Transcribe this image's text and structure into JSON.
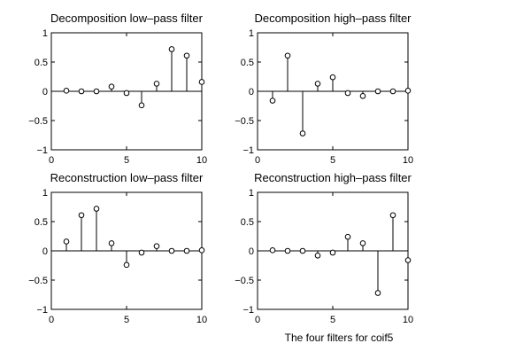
{
  "caption": "The four filters for coif5",
  "chart_data": [
    {
      "type": "stem",
      "title": "Decomposition low–pass filter",
      "xlabel": "",
      "ylabel": "",
      "xlim": [
        0,
        10
      ],
      "ylim": [
        -1,
        1
      ],
      "xticks": [
        0,
        5,
        10
      ],
      "yticks": [
        -1,
        -0.5,
        0,
        0.5,
        1
      ],
      "xtick_labels": [
        "0",
        "5",
        "10"
      ],
      "ytick_labels": [
        "−1",
        "−0.5",
        "0",
        "0.5",
        "1"
      ],
      "grid": false,
      "x": [
        1,
        2,
        3,
        4,
        5,
        6,
        7,
        8,
        9,
        10
      ],
      "values": [
        0.01,
        0.0,
        0.0,
        0.08,
        -0.03,
        -0.24,
        0.13,
        0.72,
        0.61,
        0.16
      ]
    },
    {
      "type": "stem",
      "title": "Decomposition high–pass filter",
      "xlabel": "",
      "ylabel": "",
      "xlim": [
        0,
        10
      ],
      "ylim": [
        -1,
        1
      ],
      "xticks": [
        0,
        5,
        10
      ],
      "yticks": [
        -1,
        -0.5,
        0,
        0.5,
        1
      ],
      "xtick_labels": [
        "0",
        "5",
        "10"
      ],
      "ytick_labels": [
        "−1",
        "−0.5",
        "0",
        "0.5",
        "1"
      ],
      "grid": false,
      "x": [
        1,
        2,
        3,
        4,
        5,
        6,
        7,
        8,
        9,
        10
      ],
      "values": [
        -0.16,
        0.61,
        -0.72,
        0.13,
        0.24,
        -0.03,
        -0.08,
        0.0,
        0.0,
        0.01
      ]
    },
    {
      "type": "stem",
      "title": "Reconstruction low–pass filter",
      "xlabel": "",
      "ylabel": "",
      "xlim": [
        0,
        10
      ],
      "ylim": [
        -1,
        1
      ],
      "xticks": [
        0,
        5,
        10
      ],
      "yticks": [
        -1,
        -0.5,
        0,
        0.5,
        1
      ],
      "xtick_labels": [
        "0",
        "5",
        "10"
      ],
      "ytick_labels": [
        "−1",
        "−0.5",
        "0",
        "0.5",
        "1"
      ],
      "grid": false,
      "x": [
        1,
        2,
        3,
        4,
        5,
        6,
        7,
        8,
        9,
        10
      ],
      "values": [
        0.16,
        0.61,
        0.72,
        0.13,
        -0.24,
        -0.03,
        0.08,
        0.0,
        0.0,
        0.01
      ]
    },
    {
      "type": "stem",
      "title": "Reconstruction high–pass filter",
      "xlabel": "",
      "ylabel": "",
      "xlim": [
        0,
        10
      ],
      "ylim": [
        -1,
        1
      ],
      "xticks": [
        0,
        5,
        10
      ],
      "yticks": [
        -1,
        -0.5,
        0,
        0.5,
        1
      ],
      "xtick_labels": [
        "0",
        "5",
        "10"
      ],
      "ytick_labels": [
        "−1",
        "−0.5",
        "0",
        "0.5",
        "1"
      ],
      "grid": false,
      "x": [
        1,
        2,
        3,
        4,
        5,
        6,
        7,
        8,
        9,
        10
      ],
      "values": [
        0.01,
        0.0,
        0.0,
        -0.08,
        -0.03,
        0.24,
        0.13,
        -0.72,
        0.61,
        -0.16
      ]
    }
  ]
}
